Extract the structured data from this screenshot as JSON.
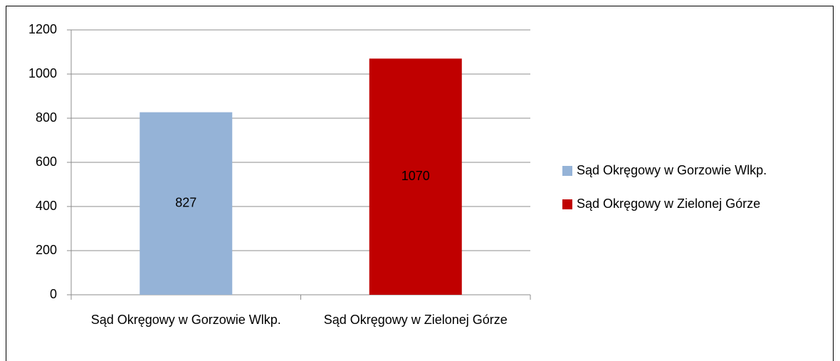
{
  "chart_data": {
    "type": "bar",
    "categories": [
      "Sąd Okręgowy w Gorzowie Wlkp.",
      "Sąd Okręgowy w Zielonej Górze"
    ],
    "series": [
      {
        "name": "Sąd Okręgowy w Gorzowie Wlkp.",
        "color": "#95b3d7",
        "values": [
          827,
          null
        ]
      },
      {
        "name": "Sąd Okręgowy w Zielonej Górze",
        "color": "#c00000",
        "values": [
          null,
          1070
        ]
      }
    ],
    "ylim": [
      0,
      1200
    ],
    "yticks": [
      0,
      200,
      400,
      600,
      800,
      1000,
      1200
    ],
    "grid": true,
    "legend": "right"
  }
}
